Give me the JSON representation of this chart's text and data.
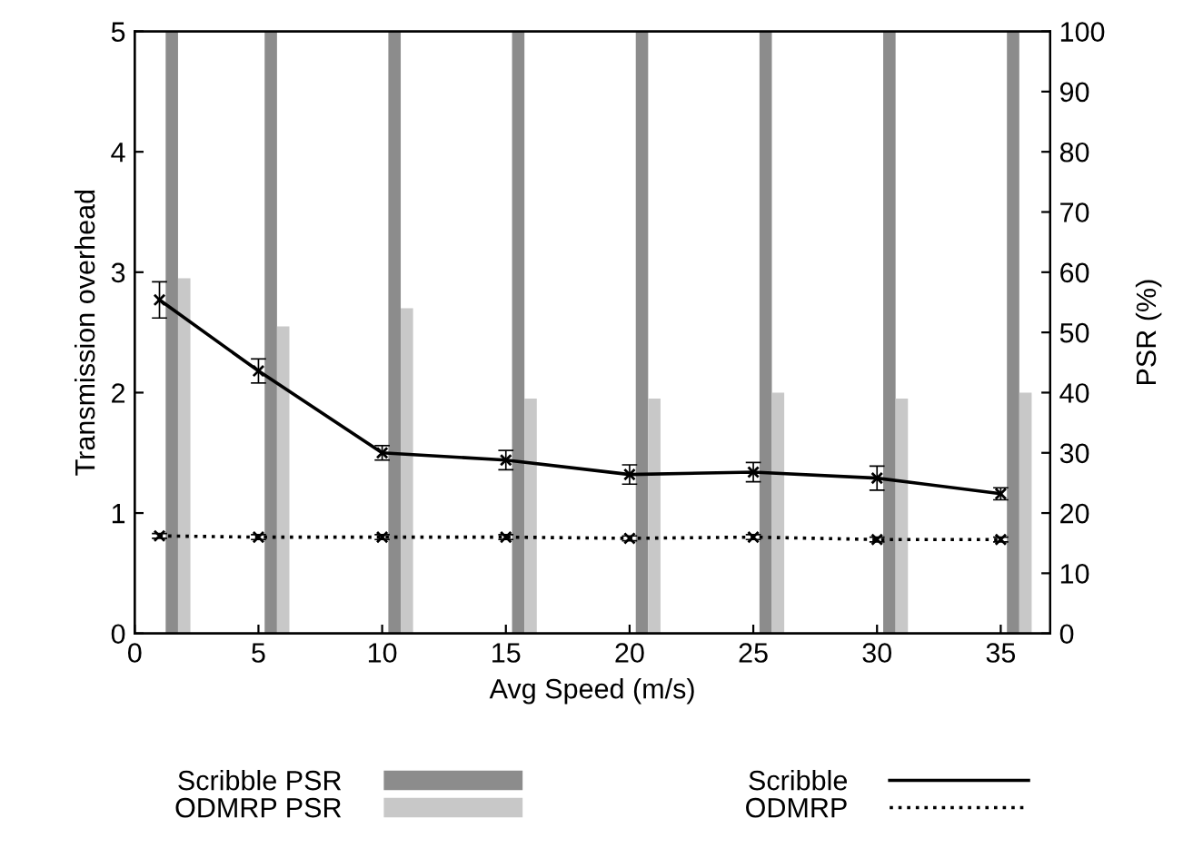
{
  "chart_data": {
    "type": "line",
    "xlabel": "Avg Speed (m/s)",
    "ylabel": "Transmission overhead",
    "y2label": "PSR (%)",
    "xlim": [
      0,
      37
    ],
    "xticks": [
      0,
      5,
      10,
      15,
      20,
      25,
      30,
      35
    ],
    "ylim": [
      0,
      5
    ],
    "yticks": [
      0,
      1,
      2,
      3,
      4,
      5
    ],
    "y2lim": [
      0,
      100
    ],
    "y2ticks": [
      0,
      10,
      20,
      30,
      40,
      50,
      60,
      70,
      80,
      90,
      100
    ],
    "grid": false,
    "legend": "bottom",
    "marker": "cross",
    "series": [
      {
        "name": "Scribble PSR",
        "type": "bar",
        "axis": "y2",
        "color": "#8c8c8c",
        "x": [
          1.5,
          5.5,
          10.5,
          15.5,
          20.5,
          25.5,
          30.5,
          35.5
        ],
        "values": [
          100,
          100,
          100,
          100,
          100,
          100,
          100,
          100
        ]
      },
      {
        "name": "ODMRP PSR",
        "type": "bar",
        "axis": "y2",
        "color": "#c8c8c8",
        "x": [
          2.0,
          6.0,
          11.0,
          16.0,
          21.0,
          26.0,
          31.0,
          36.0
        ],
        "values": [
          59,
          51,
          54,
          39,
          39,
          40,
          39,
          40
        ]
      },
      {
        "name": "Scribble",
        "line_style": "solid",
        "color": "#000000",
        "x": [
          1,
          5,
          10,
          15,
          20,
          25,
          30,
          35
        ],
        "values": [
          2.77,
          2.18,
          1.5,
          1.44,
          1.32,
          1.34,
          1.29,
          1.16
        ],
        "errors": [
          0.15,
          0.1,
          0.06,
          0.08,
          0.08,
          0.08,
          0.1,
          0.05
        ]
      },
      {
        "name": "ODMRP",
        "line_style": "dotted",
        "color": "#000000",
        "x": [
          1,
          5,
          10,
          15,
          20,
          25,
          30,
          35
        ],
        "values": [
          0.81,
          0.8,
          0.8,
          0.8,
          0.79,
          0.8,
          0.78,
          0.78
        ],
        "errors": [
          0.02,
          0.02,
          0.02,
          0.02,
          0.02,
          0.02,
          0.02,
          0.02
        ]
      }
    ]
  }
}
